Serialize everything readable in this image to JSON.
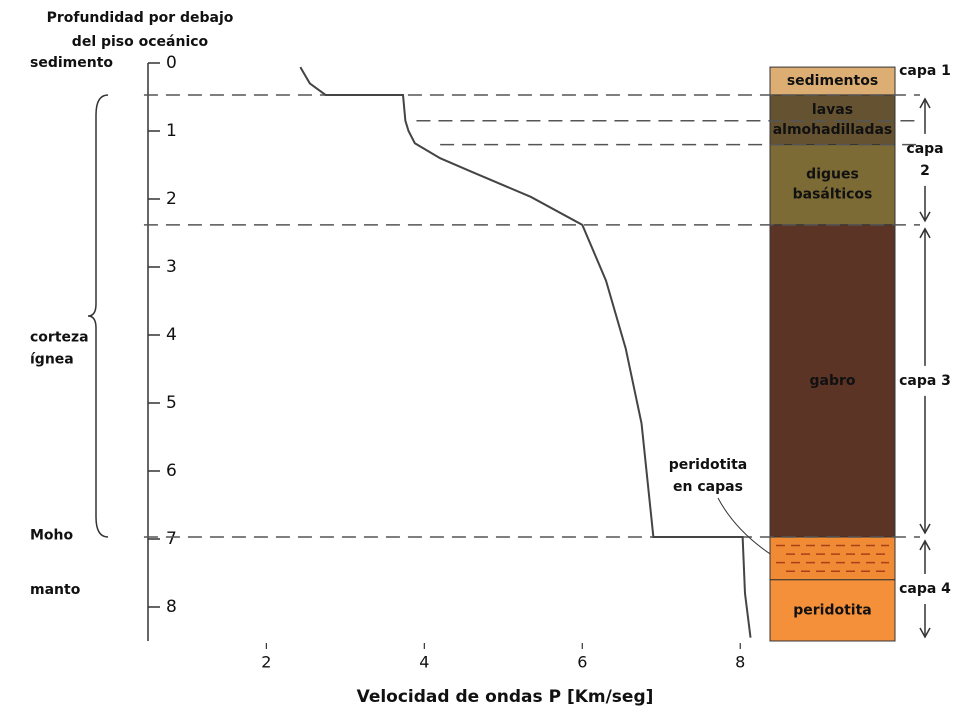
{
  "chart_data": {
    "type": "line",
    "title": [
      "Profundidad por debajo",
      "del piso oceánico"
    ],
    "xlabel": "Velocidad de ondas P [Km/seg]",
    "x": [
      2.43,
      2.55,
      2.75,
      3.73,
      3.76,
      3.8,
      3.88,
      4.2,
      4.6,
      5.35,
      6.0,
      6.3,
      6.55,
      6.75,
      6.9,
      8.03,
      8.06,
      8.13
    ],
    "values": [
      0.06,
      0.3,
      0.47,
      0.47,
      0.85,
      1.0,
      1.18,
      1.4,
      1.6,
      1.97,
      2.38,
      3.2,
      4.2,
      5.3,
      6.97,
      6.97,
      7.8,
      8.45
    ],
    "color": "#444444",
    "xlim": [
      0.4,
      8.25
    ],
    "ylim": [
      0,
      8.5
    ],
    "y_inverted": true,
    "xticks": [
      2,
      4,
      6,
      8
    ],
    "yticks": [
      0,
      1,
      2,
      3,
      4,
      5,
      6,
      7,
      8
    ],
    "boundaries": [
      {
        "depth": 0.47,
        "x_start": 0.45
      },
      {
        "depth": 0.85,
        "x_start": 3.9
      },
      {
        "depth": 1.2,
        "x_start": 4.2
      },
      {
        "depth": 2.38,
        "x_start": 0.45
      },
      {
        "depth": 6.97,
        "x_start": 0.45
      }
    ],
    "left_labels": [
      {
        "text": [
          "sedimento"
        ],
        "depth": 0
      },
      {
        "text": [
          "corteza",
          "ígnea"
        ],
        "depth": 4.2
      },
      {
        "text": [
          "Moho"
        ],
        "depth": 6.95
      },
      {
        "text": [
          "manto"
        ],
        "depth": 7.75
      }
    ],
    "column": [
      {
        "label": [
          "sedimentos"
        ],
        "top": 0.06,
        "bottom": 0.47,
        "color": "#dcae74"
      },
      {
        "label": [
          "lavas",
          "almohadilladas"
        ],
        "top": 0.47,
        "bottom": 1.2,
        "color": "#655231"
      },
      {
        "label": [
          "digues",
          "basálticos"
        ],
        "top": 1.2,
        "bottom": 2.38,
        "color": "#7d6b36"
      },
      {
        "label": [
          "gabro"
        ],
        "top": 2.38,
        "bottom": 6.97,
        "color": "#5b3426"
      },
      {
        "label": [],
        "top": 6.97,
        "bottom": 7.6,
        "color": "#f08a34"
      },
      {
        "label": [
          "peridotita"
        ],
        "top": 7.6,
        "bottom": 8.5,
        "color": "#f5903a"
      }
    ],
    "annotation": {
      "text": [
        "peridotita",
        "en capas"
      ],
      "depth": 7.1
    },
    "units": [
      {
        "label": [
          "capa 1"
        ],
        "top": 0.06,
        "bottom": 0.47
      },
      {
        "label": [
          "capa",
          "2"
        ],
        "top": 0.47,
        "bottom": 2.38
      },
      {
        "label": [
          "capa 3"
        ],
        "top": 2.38,
        "bottom": 6.97
      },
      {
        "label": [
          "capa 4"
        ],
        "top": 6.97,
        "bottom": 8.5
      }
    ]
  }
}
